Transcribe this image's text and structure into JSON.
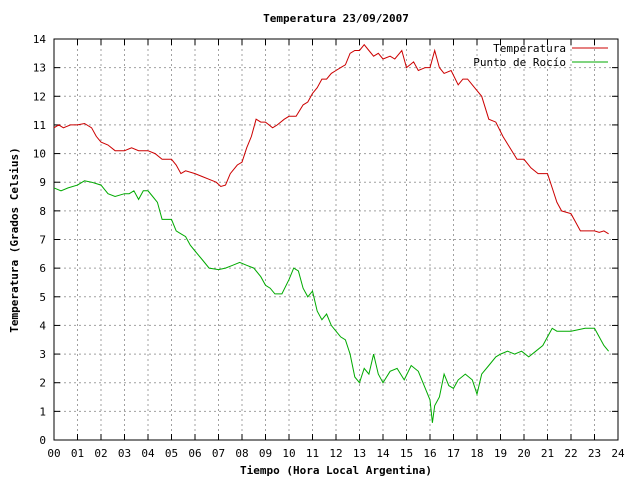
{
  "chart_data": {
    "type": "line",
    "title": "Temperatura 23/09/2007",
    "xlabel": "Tiempo (Hora Local Argentina)",
    "ylabel": "Temperatura (Grados Celsius)",
    "xlim": [
      0,
      24
    ],
    "ylim": [
      0,
      14
    ],
    "grid": true,
    "legend_position": "top-right",
    "x_tick_labels": [
      "00",
      "01",
      "02",
      "03",
      "04",
      "05",
      "06",
      "07",
      "08",
      "09",
      "10",
      "11",
      "12",
      "13",
      "14",
      "15",
      "16",
      "17",
      "18",
      "19",
      "20",
      "21",
      "22",
      "23",
      "24"
    ],
    "y_tick_labels": [
      "0",
      "1",
      "2",
      "3",
      "4",
      "5",
      "6",
      "7",
      "8",
      "9",
      "10",
      "11",
      "12",
      "13",
      "14"
    ],
    "series": [
      {
        "name": "Temperatura",
        "color": "#cc0000",
        "points": [
          [
            0.0,
            10.9
          ],
          [
            0.2,
            11.0
          ],
          [
            0.4,
            10.9
          ],
          [
            0.7,
            11.0
          ],
          [
            1.0,
            11.0
          ],
          [
            1.3,
            11.05
          ],
          [
            1.6,
            10.9
          ],
          [
            1.8,
            10.6
          ],
          [
            2.0,
            10.4
          ],
          [
            2.3,
            10.3
          ],
          [
            2.6,
            10.1
          ],
          [
            3.0,
            10.1
          ],
          [
            3.3,
            10.2
          ],
          [
            3.6,
            10.1
          ],
          [
            4.0,
            10.1
          ],
          [
            4.3,
            10.0
          ],
          [
            4.6,
            9.8
          ],
          [
            5.0,
            9.8
          ],
          [
            5.2,
            9.6
          ],
          [
            5.4,
            9.3
          ],
          [
            5.6,
            9.4
          ],
          [
            6.0,
            9.3
          ],
          [
            6.3,
            9.2
          ],
          [
            6.6,
            9.1
          ],
          [
            6.9,
            9.0
          ],
          [
            7.1,
            8.85
          ],
          [
            7.3,
            8.9
          ],
          [
            7.5,
            9.3
          ],
          [
            7.8,
            9.6
          ],
          [
            8.0,
            9.7
          ],
          [
            8.2,
            10.2
          ],
          [
            8.4,
            10.6
          ],
          [
            8.6,
            11.2
          ],
          [
            8.8,
            11.1
          ],
          [
            9.0,
            11.1
          ],
          [
            9.3,
            10.9
          ],
          [
            9.5,
            11.0
          ],
          [
            9.8,
            11.2
          ],
          [
            10.0,
            11.3
          ],
          [
            10.3,
            11.3
          ],
          [
            10.6,
            11.7
          ],
          [
            10.8,
            11.8
          ],
          [
            11.0,
            12.1
          ],
          [
            11.2,
            12.3
          ],
          [
            11.4,
            12.6
          ],
          [
            11.6,
            12.6
          ],
          [
            11.8,
            12.8
          ],
          [
            12.0,
            12.9
          ],
          [
            12.2,
            13.0
          ],
          [
            12.4,
            13.1
          ],
          [
            12.6,
            13.5
          ],
          [
            12.8,
            13.6
          ],
          [
            13.0,
            13.6
          ],
          [
            13.2,
            13.8
          ],
          [
            13.4,
            13.6
          ],
          [
            13.6,
            13.4
          ],
          [
            13.8,
            13.5
          ],
          [
            14.0,
            13.3
          ],
          [
            14.3,
            13.4
          ],
          [
            14.5,
            13.3
          ],
          [
            14.8,
            13.6
          ],
          [
            15.0,
            13.0
          ],
          [
            15.3,
            13.2
          ],
          [
            15.5,
            12.9
          ],
          [
            15.8,
            13.0
          ],
          [
            16.0,
            13.0
          ],
          [
            16.2,
            13.6
          ],
          [
            16.4,
            13.0
          ],
          [
            16.6,
            12.8
          ],
          [
            16.9,
            12.9
          ],
          [
            17.2,
            12.4
          ],
          [
            17.4,
            12.6
          ],
          [
            17.6,
            12.6
          ],
          [
            17.9,
            12.3
          ],
          [
            18.2,
            12.0
          ],
          [
            18.5,
            11.2
          ],
          [
            18.8,
            11.1
          ],
          [
            19.1,
            10.6
          ],
          [
            19.4,
            10.2
          ],
          [
            19.7,
            9.8
          ],
          [
            20.0,
            9.8
          ],
          [
            20.3,
            9.5
          ],
          [
            20.6,
            9.3
          ],
          [
            21.0,
            9.3
          ],
          [
            21.2,
            8.8
          ],
          [
            21.4,
            8.3
          ],
          [
            21.6,
            8.0
          ],
          [
            22.0,
            7.9
          ],
          [
            22.2,
            7.6
          ],
          [
            22.4,
            7.3
          ],
          [
            22.7,
            7.3
          ],
          [
            23.0,
            7.3
          ],
          [
            23.2,
            7.25
          ],
          [
            23.4,
            7.3
          ],
          [
            23.6,
            7.2
          ]
        ]
      },
      {
        "name": "Punto de Rocío",
        "color": "#00aa00",
        "points": [
          [
            0.0,
            8.8
          ],
          [
            0.3,
            8.7
          ],
          [
            0.6,
            8.8
          ],
          [
            1.0,
            8.9
          ],
          [
            1.3,
            9.05
          ],
          [
            1.6,
            9.0
          ],
          [
            1.8,
            8.95
          ],
          [
            2.0,
            8.9
          ],
          [
            2.3,
            8.6
          ],
          [
            2.6,
            8.5
          ],
          [
            3.0,
            8.6
          ],
          [
            3.2,
            8.6
          ],
          [
            3.4,
            8.7
          ],
          [
            3.6,
            8.4
          ],
          [
            3.8,
            8.7
          ],
          [
            4.0,
            8.7
          ],
          [
            4.2,
            8.5
          ],
          [
            4.4,
            8.3
          ],
          [
            4.6,
            7.7
          ],
          [
            5.0,
            7.7
          ],
          [
            5.2,
            7.3
          ],
          [
            5.4,
            7.2
          ],
          [
            5.6,
            7.1
          ],
          [
            5.8,
            6.8
          ],
          [
            6.0,
            6.6
          ],
          [
            6.3,
            6.3
          ],
          [
            6.6,
            6.0
          ],
          [
            7.0,
            5.95
          ],
          [
            7.3,
            6.0
          ],
          [
            7.6,
            6.1
          ],
          [
            7.9,
            6.2
          ],
          [
            8.2,
            6.1
          ],
          [
            8.5,
            6.0
          ],
          [
            8.8,
            5.7
          ],
          [
            9.0,
            5.4
          ],
          [
            9.2,
            5.3
          ],
          [
            9.4,
            5.1
          ],
          [
            9.7,
            5.1
          ],
          [
            10.0,
            5.6
          ],
          [
            10.2,
            6.0
          ],
          [
            10.4,
            5.9
          ],
          [
            10.6,
            5.3
          ],
          [
            10.8,
            5.0
          ],
          [
            11.0,
            5.2
          ],
          [
            11.2,
            4.5
          ],
          [
            11.4,
            4.2
          ],
          [
            11.6,
            4.4
          ],
          [
            11.8,
            4.0
          ],
          [
            12.0,
            3.8
          ],
          [
            12.2,
            3.6
          ],
          [
            12.4,
            3.5
          ],
          [
            12.6,
            3.0
          ],
          [
            12.8,
            2.2
          ],
          [
            13.0,
            2.0
          ],
          [
            13.2,
            2.5
          ],
          [
            13.4,
            2.3
          ],
          [
            13.6,
            3.0
          ],
          [
            13.8,
            2.3
          ],
          [
            14.0,
            2.0
          ],
          [
            14.3,
            2.4
          ],
          [
            14.6,
            2.5
          ],
          [
            14.9,
            2.1
          ],
          [
            15.2,
            2.6
          ],
          [
            15.5,
            2.4
          ],
          [
            15.8,
            1.8
          ],
          [
            16.0,
            1.4
          ],
          [
            16.1,
            0.6
          ],
          [
            16.2,
            1.2
          ],
          [
            16.4,
            1.5
          ],
          [
            16.6,
            2.3
          ],
          [
            16.8,
            1.9
          ],
          [
            17.0,
            1.8
          ],
          [
            17.2,
            2.1
          ],
          [
            17.5,
            2.3
          ],
          [
            17.8,
            2.1
          ],
          [
            18.0,
            1.6
          ],
          [
            18.2,
            2.3
          ],
          [
            18.5,
            2.6
          ],
          [
            18.8,
            2.9
          ],
          [
            19.0,
            3.0
          ],
          [
            19.3,
            3.1
          ],
          [
            19.6,
            3.0
          ],
          [
            19.9,
            3.1
          ],
          [
            20.2,
            2.9
          ],
          [
            20.5,
            3.1
          ],
          [
            20.8,
            3.3
          ],
          [
            21.0,
            3.6
          ],
          [
            21.2,
            3.9
          ],
          [
            21.4,
            3.8
          ],
          [
            21.7,
            3.8
          ],
          [
            22.0,
            3.8
          ],
          [
            22.3,
            3.85
          ],
          [
            22.6,
            3.9
          ],
          [
            23.0,
            3.9
          ],
          [
            23.2,
            3.6
          ],
          [
            23.4,
            3.3
          ],
          [
            23.6,
            3.1
          ]
        ]
      }
    ]
  }
}
